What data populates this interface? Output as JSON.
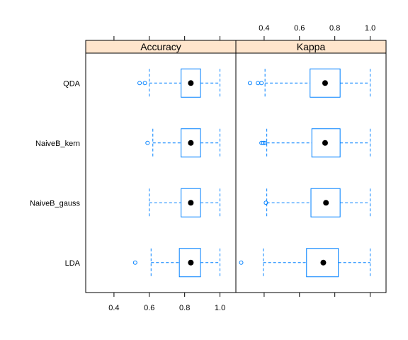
{
  "colors": {
    "box": "#0080ff",
    "strip_bg": "#ffe5cc",
    "median": "#000000",
    "frame": "#000000"
  },
  "chart_data": {
    "type": "box",
    "categories": [
      "QDA",
      "NaiveB_kern",
      "NaiveB_gauss",
      "LDA"
    ],
    "panels": [
      {
        "name": "Accuracy",
        "xlim": [
          0.24,
          1.09
        ],
        "ticks": [
          0.4,
          0.6,
          0.8,
          1.0
        ],
        "tick_labels": [
          "0.4",
          "0.6",
          "0.8",
          "1.0"
        ],
        "tick_side": "bottom",
        "boxes": [
          {
            "category": "QDA",
            "min": 0.6,
            "q1": 0.78,
            "median": 0.835,
            "q3": 0.89,
            "max": 1.0,
            "outliers": [
              0.545,
              0.575
            ]
          },
          {
            "category": "NaiveB_kern",
            "min": 0.62,
            "q1": 0.78,
            "median": 0.835,
            "q3": 0.89,
            "max": 1.0,
            "outliers": [
              0.59
            ]
          },
          {
            "category": "NaiveB_gauss",
            "min": 0.6,
            "q1": 0.78,
            "median": 0.835,
            "q3": 0.89,
            "max": 1.0,
            "outliers": []
          },
          {
            "category": "LDA",
            "min": 0.61,
            "q1": 0.77,
            "median": 0.835,
            "q3": 0.89,
            "max": 1.0,
            "outliers": [
              0.52
            ]
          }
        ]
      },
      {
        "name": "Kappa",
        "xlim": [
          0.24,
          1.09
        ],
        "ticks": [
          0.4,
          0.6,
          0.8,
          1.0
        ],
        "tick_labels": [
          "0.4",
          "0.6",
          "0.8",
          "1.0"
        ],
        "tick_side": "top",
        "boxes": [
          {
            "category": "QDA",
            "min": 0.405,
            "q1": 0.66,
            "median": 0.745,
            "q3": 0.83,
            "max": 1.0,
            "outliers": [
              0.32,
              0.365,
              0.385
            ]
          },
          {
            "category": "NaiveB_kern",
            "min": 0.415,
            "q1": 0.67,
            "median": 0.745,
            "q3": 0.83,
            "max": 1.0,
            "outliers": [
              0.385,
              0.395,
              0.405
            ]
          },
          {
            "category": "NaiveB_gauss",
            "min": 0.415,
            "q1": 0.665,
            "median": 0.75,
            "q3": 0.83,
            "max": 1.0,
            "outliers": [
              0.41
            ]
          },
          {
            "category": "LDA",
            "min": 0.395,
            "q1": 0.64,
            "median": 0.735,
            "q3": 0.82,
            "max": 1.0,
            "outliers": [
              0.27
            ]
          }
        ]
      }
    ]
  }
}
